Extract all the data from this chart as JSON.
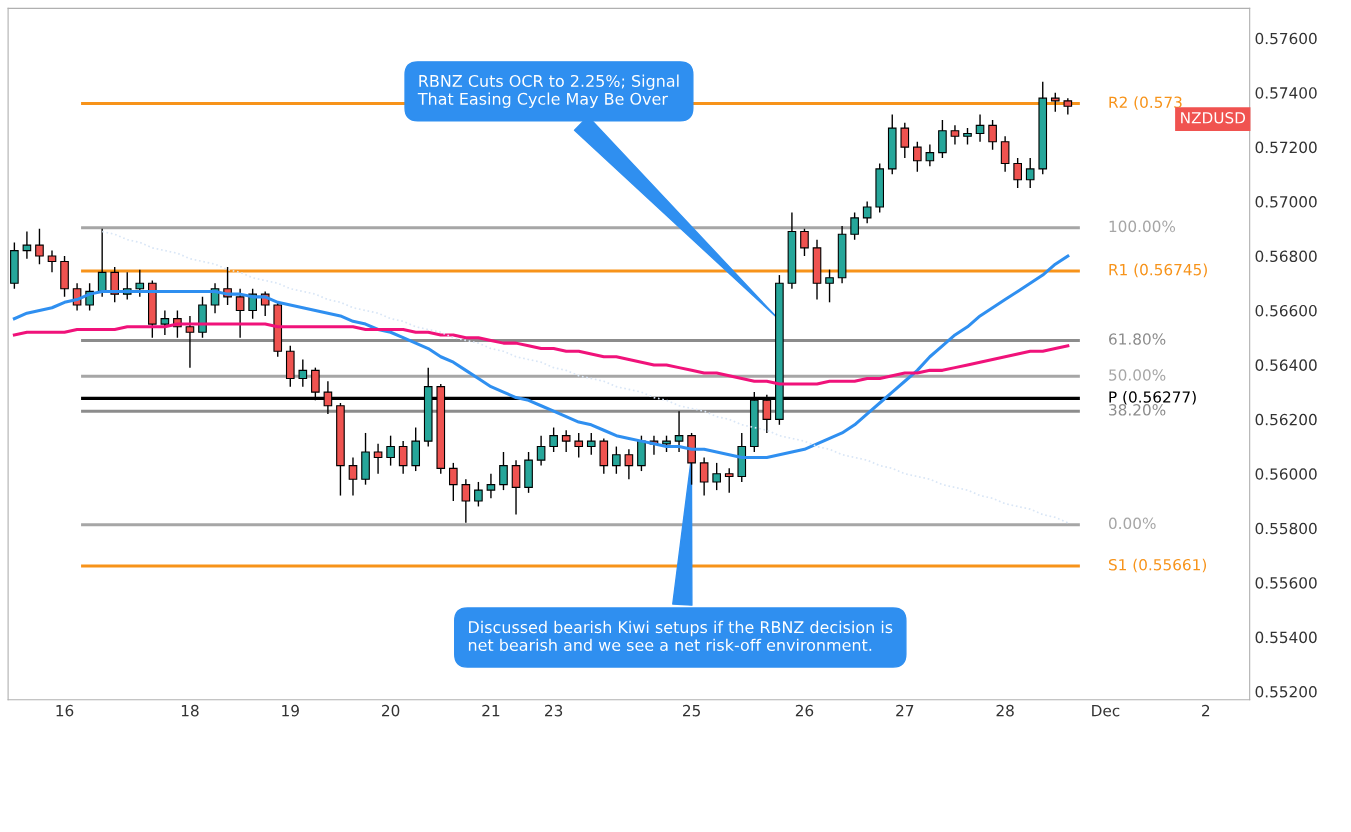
{
  "chart_data": {
    "type": "candlestick",
    "categories": [
      null,
      null,
      null,
      null,
      "16",
      null,
      null,
      null,
      null,
      null,
      null,
      null,
      null,
      null,
      "18",
      null,
      null,
      null,
      null,
      null,
      null,
      null,
      "19",
      null,
      null,
      null,
      null,
      null,
      null,
      null,
      "20",
      null,
      null,
      null,
      null,
      null,
      null,
      null,
      "21",
      null,
      null,
      null,
      null,
      "23",
      null,
      null,
      null,
      null,
      null,
      null,
      null,
      null,
      null,
      null,
      "25",
      null,
      null,
      null,
      null,
      null,
      null,
      null,
      null,
      "26",
      null,
      null,
      null,
      null,
      null,
      null,
      null,
      "27",
      null,
      null,
      null,
      null,
      null,
      null,
      null,
      "28",
      null,
      null,
      null,
      null,
      null,
      null,
      null,
      "Dec",
      null,
      null,
      null,
      null,
      null,
      null,
      null,
      "2",
      null,
      null,
      null
    ],
    "ohlc": [
      [
        0.567,
        0.5685,
        0.5668,
        0.5682
      ],
      [
        0.5682,
        0.5689,
        0.5679,
        0.5684
      ],
      [
        0.5684,
        0.569,
        0.5677,
        0.568
      ],
      [
        0.568,
        0.5682,
        0.5674,
        0.5678
      ],
      [
        0.5678,
        0.568,
        0.5665,
        0.5668
      ],
      [
        0.5668,
        0.567,
        0.566,
        0.5662
      ],
      [
        0.5662,
        0.567,
        0.566,
        0.5667
      ],
      [
        0.5667,
        0.569,
        0.5665,
        0.5674
      ],
      [
        0.5674,
        0.5676,
        0.5663,
        0.5666
      ],
      [
        0.5666,
        0.5674,
        0.5664,
        0.5668
      ],
      [
        0.5668,
        0.5675,
        0.5665,
        0.567
      ],
      [
        0.567,
        0.5671,
        0.565,
        0.5655
      ],
      [
        0.5655,
        0.566,
        0.5651,
        0.5657
      ],
      [
        0.5657,
        0.566,
        0.565,
        0.5654
      ],
      [
        0.5654,
        0.5658,
        0.5639,
        0.5652
      ],
      [
        0.5652,
        0.5665,
        0.565,
        0.5662
      ],
      [
        0.5662,
        0.567,
        0.5659,
        0.5668
      ],
      [
        0.5668,
        0.5676,
        0.5662,
        0.5665
      ],
      [
        0.5665,
        0.5668,
        0.565,
        0.566
      ],
      [
        0.566,
        0.5668,
        0.5657,
        0.5666
      ],
      [
        0.5666,
        0.5667,
        0.5658,
        0.5662
      ],
      [
        0.5662,
        0.5663,
        0.5643,
        0.5645
      ],
      [
        0.5645,
        0.5647,
        0.5632,
        0.5635
      ],
      [
        0.5635,
        0.5642,
        0.5632,
        0.5638
      ],
      [
        0.5638,
        0.5639,
        0.5627,
        0.563
      ],
      [
        0.563,
        0.5634,
        0.5622,
        0.5625
      ],
      [
        0.5625,
        0.5626,
        0.5592,
        0.5603
      ],
      [
        0.5603,
        0.5606,
        0.5592,
        0.5598
      ],
      [
        0.5598,
        0.5615,
        0.5596,
        0.5608
      ],
      [
        0.5608,
        0.5611,
        0.56,
        0.5606
      ],
      [
        0.5606,
        0.5614,
        0.5603,
        0.561
      ],
      [
        0.561,
        0.5612,
        0.56,
        0.5603
      ],
      [
        0.5603,
        0.5617,
        0.5601,
        0.5612
      ],
      [
        0.5612,
        0.5639,
        0.561,
        0.5632
      ],
      [
        0.5632,
        0.5633,
        0.56,
        0.5602
      ],
      [
        0.5602,
        0.5604,
        0.559,
        0.5596
      ],
      [
        0.5596,
        0.5598,
        0.5582,
        0.559
      ],
      [
        0.559,
        0.5597,
        0.5588,
        0.5594
      ],
      [
        0.5594,
        0.56,
        0.5591,
        0.5596
      ],
      [
        0.5596,
        0.5608,
        0.5594,
        0.5603
      ],
      [
        0.5603,
        0.5605,
        0.5585,
        0.5595
      ],
      [
        0.5595,
        0.5608,
        0.5593,
        0.5605
      ],
      [
        0.5605,
        0.5614,
        0.5603,
        0.561
      ],
      [
        0.561,
        0.5617,
        0.5608,
        0.5614
      ],
      [
        0.5614,
        0.5616,
        0.5608,
        0.5612
      ],
      [
        0.5612,
        0.5615,
        0.5606,
        0.561
      ],
      [
        0.561,
        0.5615,
        0.5607,
        0.5612
      ],
      [
        0.5612,
        0.5613,
        0.56,
        0.5603
      ],
      [
        0.5603,
        0.561,
        0.56,
        0.5607
      ],
      [
        0.5607,
        0.5609,
        0.5598,
        0.5603
      ],
      [
        0.5603,
        0.5614,
        0.5601,
        0.5612
      ],
      [
        0.5612,
        0.5614,
        0.5607,
        0.5611
      ],
      [
        0.5611,
        0.5614,
        0.5608,
        0.5612
      ],
      [
        0.5612,
        0.5623,
        0.5608,
        0.5614
      ],
      [
        0.5614,
        0.5615,
        0.5596,
        0.5604
      ],
      [
        0.5604,
        0.5606,
        0.5592,
        0.5597
      ],
      [
        0.5597,
        0.5604,
        0.5594,
        0.56
      ],
      [
        0.56,
        0.5602,
        0.5593,
        0.5599
      ],
      [
        0.5599,
        0.5615,
        0.5597,
        0.561
      ],
      [
        0.561,
        0.563,
        0.5608,
        0.5627
      ],
      [
        0.5627,
        0.5629,
        0.5615,
        0.562
      ],
      [
        0.562,
        0.5673,
        0.5618,
        0.567
      ],
      [
        0.567,
        0.5696,
        0.5668,
        0.5689
      ],
      [
        0.5689,
        0.569,
        0.568,
        0.5683
      ],
      [
        0.5683,
        0.5686,
        0.5664,
        0.567
      ],
      [
        0.567,
        0.5675,
        0.5663,
        0.5672
      ],
      [
        0.5672,
        0.5691,
        0.567,
        0.5688
      ],
      [
        0.5688,
        0.5696,
        0.5686,
        0.5694
      ],
      [
        0.5694,
        0.57,
        0.5692,
        0.5698
      ],
      [
        0.5698,
        0.5714,
        0.5696,
        0.5712
      ],
      [
        0.5712,
        0.5732,
        0.571,
        0.5727
      ],
      [
        0.5727,
        0.5729,
        0.5716,
        0.572
      ],
      [
        0.572,
        0.5722,
        0.5711,
        0.5715
      ],
      [
        0.5715,
        0.5721,
        0.5713,
        0.5718
      ],
      [
        0.5718,
        0.573,
        0.5716,
        0.5726
      ],
      [
        0.5726,
        0.5728,
        0.5721,
        0.5724
      ],
      [
        0.5724,
        0.5727,
        0.5721,
        0.5725
      ],
      [
        0.5725,
        0.5732,
        0.5722,
        0.5728
      ],
      [
        0.5728,
        0.573,
        0.5719,
        0.5722
      ],
      [
        0.5722,
        0.5724,
        0.5711,
        0.5714
      ],
      [
        0.5714,
        0.5716,
        0.5705,
        0.5708
      ],
      [
        0.5708,
        0.5716,
        0.5705,
        0.5712
      ],
      [
        0.5712,
        0.5744,
        0.571,
        0.5738
      ],
      [
        0.5738,
        0.574,
        0.5733,
        0.5737
      ],
      [
        0.5737,
        0.5738,
        0.5732,
        0.5735
      ],
      null,
      null,
      null,
      null,
      null,
      null,
      null,
      null,
      null,
      null,
      null,
      null,
      null,
      null
    ],
    "colors": [
      "#26a69a",
      "#26a69a",
      "#ef5350",
      "#ef5350",
      "#ef5350",
      "#ef5350",
      "#26a69a",
      "#26a69a",
      "#ef5350",
      "#26a69a",
      "#26a69a",
      "#ef5350",
      "#26a69a",
      "#ef5350",
      "#ef5350",
      "#26a69a",
      "#26a69a",
      "#ef5350",
      "#ef5350",
      "#26a69a",
      "#ef5350",
      "#ef5350",
      "#ef5350",
      "#26a69a",
      "#ef5350",
      "#ef5350",
      "#ef5350",
      "#ef5350",
      "#26a69a",
      "#ef5350",
      "#26a69a",
      "#ef5350",
      "#26a69a",
      "#26a69a",
      "#ef5350",
      "#ef5350",
      "#ef5350",
      "#26a69a",
      "#26a69a",
      "#26a69a",
      "#ef5350",
      "#26a69a",
      "#26a69a",
      "#26a69a",
      "#ef5350",
      "#ef5350",
      "#26a69a",
      "#ef5350",
      "#26a69a",
      "#ef5350",
      "#26a69a",
      "#ef5350",
      "#26a69a",
      "#26a69a",
      "#ef5350",
      "#ef5350",
      "#26a69a",
      "#ef5350",
      "#26a69a",
      "#26a69a",
      "#ef5350",
      "#26a69a",
      "#26a69a",
      "#ef5350",
      "#ef5350",
      "#26a69a",
      "#26a69a",
      "#26a69a",
      "#26a69a",
      "#26a69a",
      "#26a69a",
      "#ef5350",
      "#ef5350",
      "#26a69a",
      "#26a69a",
      "#ef5350",
      "#26a69a",
      "#26a69a",
      "#ef5350",
      "#ef5350",
      "#ef5350",
      "#26a69a",
      "#26a69a",
      "#ef5350",
      "#ef5350",
      null,
      null,
      null,
      null,
      null,
      null,
      null,
      null,
      null,
      null,
      null,
      null,
      null,
      null
    ],
    "series": [
      {
        "type": "line",
        "color": "#2f8ff0",
        "values": [
          0.5657,
          0.5659,
          0.566,
          0.5661,
          0.5663,
          0.5664,
          0.5666,
          0.5667,
          0.5667,
          0.5667,
          0.5667,
          0.5667,
          0.5667,
          0.5667,
          0.5667,
          0.5667,
          0.5667,
          0.5666,
          0.5666,
          0.5665,
          0.5665,
          0.5663,
          0.5662,
          0.5661,
          0.566,
          0.5659,
          0.5658,
          0.5656,
          0.5655,
          0.5653,
          0.5652,
          0.565,
          0.5648,
          0.5646,
          0.5643,
          0.5641,
          0.5638,
          0.5635,
          0.5632,
          0.563,
          0.5628,
          0.5627,
          0.5625,
          0.5623,
          0.5621,
          0.5619,
          0.5618,
          0.5616,
          0.5614,
          0.5613,
          0.5612,
          0.5611,
          0.561,
          0.561,
          0.5609,
          0.5609,
          0.5608,
          0.5607,
          0.5606,
          0.5606,
          0.5606,
          0.5607,
          0.5608,
          0.5609,
          0.5611,
          0.5613,
          0.5615,
          0.5618,
          0.5622,
          0.5626,
          0.563,
          0.5634,
          0.5638,
          0.5643,
          0.5647,
          0.5651,
          0.5654,
          0.5658,
          0.5661,
          0.5664,
          0.5667,
          0.567,
          0.5673,
          0.5677,
          0.568,
          null,
          null,
          null,
          null,
          null,
          null,
          null,
          null,
          null,
          null,
          null,
          null,
          null,
          null
        ]
      },
      {
        "type": "line",
        "color": "#f0127a",
        "values": [
          0.5651,
          0.5652,
          0.5652,
          0.5652,
          0.5652,
          0.5653,
          0.5653,
          0.5653,
          0.5653,
          0.5654,
          0.5654,
          0.5654,
          0.5654,
          0.5655,
          0.5655,
          0.5655,
          0.5655,
          0.5655,
          0.5655,
          0.5655,
          0.5655,
          0.5654,
          0.5654,
          0.5654,
          0.5654,
          0.5654,
          0.5654,
          0.5654,
          0.5653,
          0.5653,
          0.5653,
          0.5653,
          0.5652,
          0.5652,
          0.5651,
          0.5651,
          0.565,
          0.565,
          0.5649,
          0.5648,
          0.5648,
          0.5647,
          0.5646,
          0.5646,
          0.5645,
          0.5645,
          0.5644,
          0.5643,
          0.5643,
          0.5642,
          0.5641,
          0.564,
          0.564,
          0.5639,
          0.5638,
          0.5637,
          0.5637,
          0.5636,
          0.5635,
          0.5634,
          0.5634,
          0.5633,
          0.5633,
          0.5633,
          0.5633,
          0.5634,
          0.5634,
          0.5634,
          0.5635,
          0.5635,
          0.5636,
          0.5637,
          0.5637,
          0.5638,
          0.5638,
          0.5639,
          0.564,
          0.5641,
          0.5642,
          0.5643,
          0.5644,
          0.5645,
          0.5645,
          0.5646,
          0.5647,
          null,
          null,
          null,
          null,
          null,
          null,
          null,
          null,
          null,
          null,
          null,
          null,
          null,
          null
        ]
      },
      {
        "type": "line",
        "color": "#d9e6f6",
        "line_style": "dotted",
        "values": [
          null,
          null,
          null,
          null,
          null,
          null,
          null,
          0.5689,
          0.5688,
          0.5686,
          0.5685,
          0.5683,
          0.5682,
          0.5681,
          0.5679,
          0.5678,
          0.5677,
          0.5675,
          0.5674,
          0.5672,
          0.5671,
          0.567,
          0.5668,
          0.5667,
          0.5666,
          0.5664,
          0.5663,
          0.5661,
          0.566,
          0.5659,
          0.5657,
          0.5656,
          0.5654,
          0.5653,
          0.5652,
          0.565,
          0.5649,
          0.5648,
          0.5646,
          0.5645,
          0.5643,
          0.5642,
          0.5641,
          0.5639,
          0.5638,
          0.5636,
          0.5635,
          0.5634,
          0.5632,
          0.5631,
          0.563,
          0.5628,
          0.5627,
          0.5625,
          0.5624,
          0.5623,
          0.5621,
          0.562,
          0.5618,
          0.5617,
          0.5616,
          0.5614,
          0.5613,
          0.5612,
          0.561,
          0.5609,
          0.5607,
          0.5606,
          0.5605,
          0.5603,
          0.5602,
          0.56,
          0.5599,
          0.5598,
          0.5596,
          0.5595,
          0.5594,
          0.5592,
          0.5591,
          0.5589,
          0.5588,
          0.5587,
          0.5585,
          0.5584,
          0.5582,
          null,
          null,
          null,
          null,
          null,
          null,
          null,
          null,
          null,
          null,
          null,
          null,
          null,
          null
        ]
      }
    ],
    "ref_lines": [
      {
        "axis": "y",
        "value": 0.56904,
        "color": "#a6a6a6"
      },
      {
        "axis": "y",
        "value": 0.5649,
        "color": "#8c8c8c"
      },
      {
        "axis": "y",
        "value": 0.56358,
        "color": "#a6a6a6"
      },
      {
        "axis": "y",
        "value": 0.5623,
        "color": "#8c8c8c"
      },
      {
        "axis": "y",
        "value": 0.55813,
        "color": "#a6a6a6"
      },
      {
        "axis": "y",
        "value": 0.5736,
        "label": "R2 (0.573",
        "color": "#f7931a"
      },
      {
        "axis": "y",
        "value": 0.56745,
        "label": "R1 (0.56745)",
        "color": "#f7931a"
      },
      {
        "axis": "y",
        "value": 0.56277,
        "label": "P (0.56277)",
        "color": "#000000"
      },
      {
        "axis": "y",
        "value": 0.55661,
        "label": "S1 (0.55661)",
        "color": "#f7931a"
      }
    ],
    "annotations": [
      "RBNZ Cuts OCR to 2.25%; Signal\nThat Easing Cycle May Be Over",
      {
        "text": "Discussed bearish Kiwi setups if the RBNZ decision is\nnet bearish and we see a net risk-off environment.",
        "x": "25",
        "y": 0.5607
      },
      "100.00%",
      "61.80%",
      "50.00%",
      "38.20%",
      "0.00%",
      "NZDUSD"
    ],
    "ylim": [
      0.5517,
      0.5771
    ],
    "yticks": [
      {
        "value": 0.552,
        "label": "0.55200"
      },
      {
        "value": 0.554,
        "label": "0.55400"
      },
      {
        "value": 0.556,
        "label": "0.55600"
      },
      {
        "value": 0.558,
        "label": "0.55800"
      },
      {
        "value": 0.56,
        "label": "0.56000"
      },
      {
        "value": 0.562,
        "label": "0.56200"
      },
      {
        "value": 0.564,
        "label": "0.56400"
      },
      {
        "value": 0.566,
        "label": "0.56600"
      },
      {
        "value": 0.568,
        "label": "0.56800"
      },
      {
        "value": 0.57,
        "label": "0.57000"
      },
      {
        "value": 0.572,
        "label": "0.57200"
      },
      {
        "value": 0.574,
        "label": "0.57400"
      },
      {
        "value": 0.576,
        "label": "0.57600"
      }
    ],
    "grid": false,
    "legend": false
  }
}
